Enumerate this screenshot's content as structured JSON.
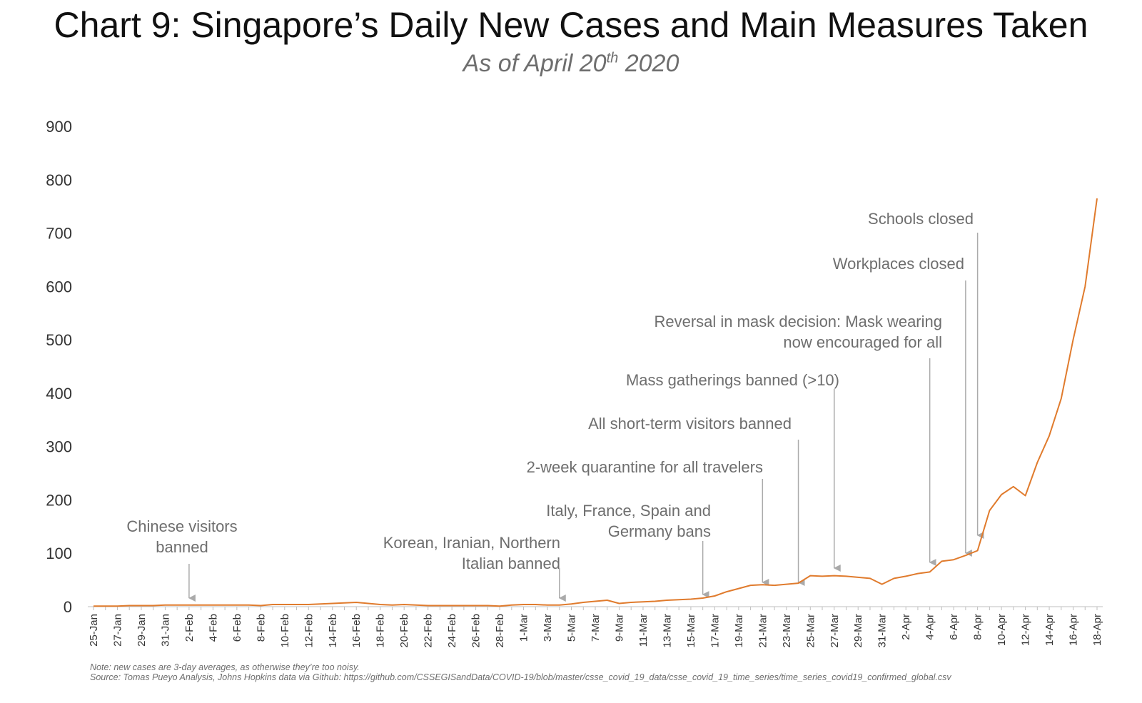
{
  "header": {
    "title": "Chart 9: Singapore’s Daily New Cases and Main Measures Taken",
    "subtitle_main": "As of April 20",
    "subtitle_sup": "th",
    "subtitle_year": " 2020"
  },
  "footer": {
    "note": "Note: new cases are 3-day averages, as otherwise they’re too noisy.",
    "source": "Source: Tomas Pueyo Analysis, Johns Hopkins data via Github: https://github.com/CSSEGISandData/COVID-19/blob/master/csse_covid_19_data/csse_covid_19_time_series/time_series_covid19_confirmed_global.csv"
  },
  "colors": {
    "line": "#E07B2D",
    "arrow": "#AAAAAA",
    "annotation": "#6E6E6E"
  },
  "chart_data": {
    "type": "line",
    "title": "Chart 9: Singapore’s Daily New Cases and Main Measures Taken",
    "subtitle": "As of April 20th 2020",
    "ylim": [
      0,
      900
    ],
    "yticks": [
      0,
      100,
      200,
      300,
      400,
      500,
      600,
      700,
      800,
      900
    ],
    "grid": false,
    "x": [
      "25-Jan",
      "26-Jan",
      "27-Jan",
      "28-Jan",
      "29-Jan",
      "30-Jan",
      "31-Jan",
      "1-Feb",
      "2-Feb",
      "3-Feb",
      "4-Feb",
      "5-Feb",
      "6-Feb",
      "7-Feb",
      "8-Feb",
      "9-Feb",
      "10-Feb",
      "11-Feb",
      "12-Feb",
      "13-Feb",
      "14-Feb",
      "15-Feb",
      "16-Feb",
      "17-Feb",
      "18-Feb",
      "19-Feb",
      "20-Feb",
      "21-Feb",
      "22-Feb",
      "23-Feb",
      "24-Feb",
      "25-Feb",
      "26-Feb",
      "27-Feb",
      "28-Feb",
      "29-Feb",
      "1-Mar",
      "2-Mar",
      "3-Mar",
      "4-Mar",
      "5-Mar",
      "6-Mar",
      "7-Mar",
      "8-Mar",
      "9-Mar",
      "10-Mar",
      "11-Mar",
      "12-Mar",
      "13-Mar",
      "14-Mar",
      "15-Mar",
      "16-Mar",
      "17-Mar",
      "18-Mar",
      "19-Mar",
      "20-Mar",
      "21-Mar",
      "22-Mar",
      "23-Mar",
      "24-Mar",
      "25-Mar",
      "26-Mar",
      "27-Mar",
      "28-Mar",
      "29-Mar",
      "30-Mar",
      "31-Mar",
      "1-Apr",
      "2-Apr",
      "3-Apr",
      "4-Apr",
      "5-Apr",
      "6-Apr",
      "7-Apr",
      "8-Apr",
      "9-Apr",
      "10-Apr",
      "11-Apr",
      "12-Apr",
      "13-Apr",
      "14-Apr",
      "15-Apr",
      "16-Apr",
      "17-Apr",
      "18-Apr"
    ],
    "xtick_labels": [
      "25-Jan",
      "27-Jan",
      "29-Jan",
      "31-Jan",
      "2-Feb",
      "4-Feb",
      "6-Feb",
      "8-Feb",
      "10-Feb",
      "12-Feb",
      "14-Feb",
      "16-Feb",
      "18-Feb",
      "20-Feb",
      "22-Feb",
      "24-Feb",
      "26-Feb",
      "28-Feb",
      "1-Mar",
      "3-Mar",
      "5-Mar",
      "7-Mar",
      "9-Mar",
      "11-Mar",
      "13-Mar",
      "15-Mar",
      "17-Mar",
      "19-Mar",
      "21-Mar",
      "23-Mar",
      "25-Mar",
      "27-Mar",
      "29-Mar",
      "31-Mar",
      "2-Apr",
      "4-Apr",
      "6-Apr",
      "8-Apr",
      "10-Apr",
      "12-Apr",
      "14-Apr",
      "16-Apr",
      "18-Apr"
    ],
    "series": [
      {
        "values": [
          1,
          1,
          1,
          2,
          2,
          2,
          3,
          3,
          3,
          3,
          3,
          3,
          3,
          3,
          2,
          4,
          4,
          4,
          4,
          5,
          6,
          7,
          8,
          6,
          4,
          3,
          4,
          3,
          2,
          2,
          2,
          2,
          2,
          2,
          1,
          3,
          4,
          4,
          3,
          3,
          5,
          8,
          10,
          12,
          6,
          8,
          9,
          10,
          12,
          13,
          14,
          16,
          20,
          28,
          34,
          40,
          41,
          40,
          42,
          44,
          58,
          57,
          58,
          57,
          55,
          53,
          42,
          53,
          57,
          62,
          65,
          85,
          88,
          96,
          105,
          180,
          210,
          225,
          208,
          270,
          320,
          390,
          500,
          600,
          765
        ]
      }
    ],
    "annotations": [
      {
        "text": [
          "Chinese visitors",
          "banned"
        ],
        "x": "2-Feb"
      },
      {
        "text": [
          "Korean, Iranian, Northern",
          "Italian banned"
        ],
        "x": "4-Mar"
      },
      {
        "text": [
          "Italy, France, Spain and",
          "Germany bans"
        ],
        "x": "16-Mar"
      },
      {
        "text": [
          "2-week quarantine for all travelers"
        ],
        "x": "21-Mar"
      },
      {
        "text": [
          "All short-term visitors banned"
        ],
        "x": "24-Mar"
      },
      {
        "text": [
          "Mass gatherings banned (>10)"
        ],
        "x": "27-Mar"
      },
      {
        "text": [
          "Reversal in mask decision: Mask wearing",
          "now encouraged for all"
        ],
        "x": "4-Apr"
      },
      {
        "text": [
          "Workplaces closed"
        ],
        "x": "7-Apr"
      },
      {
        "text": [
          "Schools closed"
        ],
        "x": "8-Apr"
      }
    ]
  }
}
